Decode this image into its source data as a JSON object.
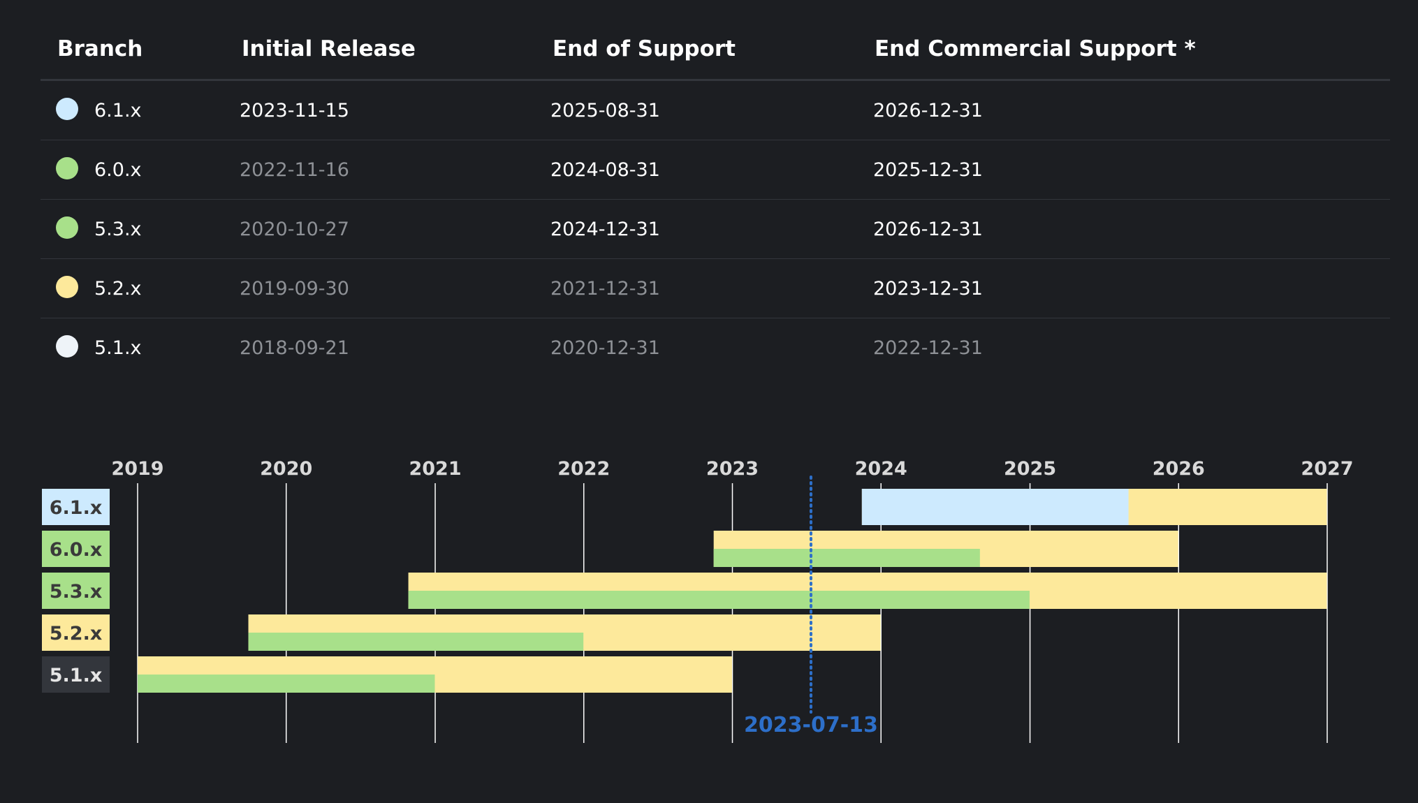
{
  "table": {
    "headers": [
      "Branch",
      "Initial Release",
      "End of Support",
      "End Commercial Support *"
    ],
    "rows": [
      {
        "branch": "6.1.x",
        "dot_color": "#cdeafe",
        "initial_release": "2023-11-15",
        "end_of_support": "2025-08-31",
        "end_commercial_support": "2026-12-31",
        "muted": [
          false,
          false,
          false
        ]
      },
      {
        "branch": "6.0.x",
        "dot_color": "#a8e08a",
        "initial_release": "2022-11-16",
        "end_of_support": "2024-08-31",
        "end_commercial_support": "2025-12-31",
        "muted": [
          true,
          false,
          false
        ]
      },
      {
        "branch": "5.3.x",
        "dot_color": "#a8e08a",
        "initial_release": "2020-10-27",
        "end_of_support": "2024-12-31",
        "end_commercial_support": "2026-12-31",
        "muted": [
          true,
          false,
          false
        ]
      },
      {
        "branch": "5.2.x",
        "dot_color": "#fde99b",
        "initial_release": "2019-09-30",
        "end_of_support": "2021-12-31",
        "end_commercial_support": "2023-12-31",
        "muted": [
          true,
          true,
          false
        ]
      },
      {
        "branch": "5.1.x",
        "dot_color": "#eef3f8",
        "initial_release": "2018-09-21",
        "end_of_support": "2020-12-31",
        "end_commercial_support": "2022-12-31",
        "muted": [
          true,
          true,
          true
        ]
      }
    ]
  },
  "chart_data": {
    "type": "gantt",
    "x_ticks": [
      "2019",
      "2020",
      "2021",
      "2022",
      "2023",
      "2024",
      "2025",
      "2026",
      "2027"
    ],
    "xlim": [
      "2019-01-01",
      "2027-01-01"
    ],
    "today_marker": "2023-07-13",
    "grid": true,
    "series": [
      {
        "name": "6.1.x",
        "label_bg": "#cdeafe",
        "label_fg": "#3a3a3a",
        "start": "2023-11-15",
        "end_of_support": "2025-08-31",
        "end_commercial": "2026-12-31",
        "support_color": "#cdeafe",
        "split": false
      },
      {
        "name": "6.0.x",
        "label_bg": "#a8e08a",
        "label_fg": "#3a3a3a",
        "start": "2022-11-16",
        "end_of_support": "2024-08-31",
        "end_commercial": "2025-12-31",
        "support_color": "#a8e08a",
        "split": true
      },
      {
        "name": "5.3.x",
        "label_bg": "#a8e08a",
        "label_fg": "#3a3a3a",
        "start": "2020-10-27",
        "end_of_support": "2024-12-31",
        "end_commercial": "2026-12-31",
        "support_color": "#a8e08a",
        "split": true
      },
      {
        "name": "5.2.x",
        "label_bg": "#fde99b",
        "label_fg": "#3a3a3a",
        "start": "2019-09-30",
        "end_of_support": "2021-12-31",
        "end_commercial": "2023-12-31",
        "support_color": "#a8e08a",
        "split": true
      },
      {
        "name": "5.1.x",
        "label_bg": "#33363c",
        "label_fg": "#e6e6e6",
        "start": "2018-09-21",
        "end_of_support": "2020-12-31",
        "end_commercial": "2022-12-31",
        "support_color": "#a8e08a",
        "split": true
      }
    ],
    "colors": {
      "commercial": "#fde99b",
      "gridline": "#ffffff",
      "tick_text": "#d9d9d9",
      "today_marker": "#2d6fc9"
    }
  }
}
